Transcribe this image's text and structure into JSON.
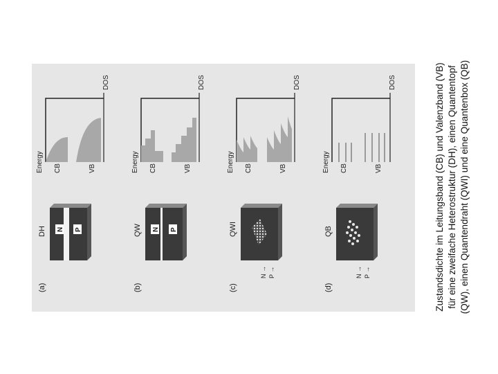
{
  "figure": {
    "panels": [
      {
        "letter": "(a)",
        "device": "DH",
        "layer_n": "N",
        "layer_p": "P",
        "energy_label": "Energy",
        "cb_label": "CB",
        "vb_label": "VB",
        "dos_label": "DOS"
      },
      {
        "letter": "(b)",
        "device": "QW",
        "layer_n": "N",
        "layer_p": "P",
        "energy_label": "Energy",
        "cb_label": "CB",
        "vb_label": "VB",
        "dos_label": "DOS"
      },
      {
        "letter": "(c)",
        "device": "QWI",
        "arrow_n": "N →",
        "arrow_p": "P →",
        "energy_label": "Energy",
        "cb_label": "CB",
        "vb_label": "VB",
        "dos_label": "DOS"
      },
      {
        "letter": "(d)",
        "device": "QB",
        "arrow_n": "N →",
        "arrow_p": "P →",
        "energy_label": "Energy",
        "cb_label": "CB",
        "vb_label": "VB",
        "dos_label": "DOS"
      }
    ]
  },
  "caption": {
    "line1": "Zustandsdichte im Leitungsband (CB) und Valenzband (VB)",
    "line2": "für eine zweifache Heterostruktur (DH), einen Quantentopf",
    "line3": "(QW), einen Quantendraht (QWI) und eine Quantenbox (QB)"
  }
}
